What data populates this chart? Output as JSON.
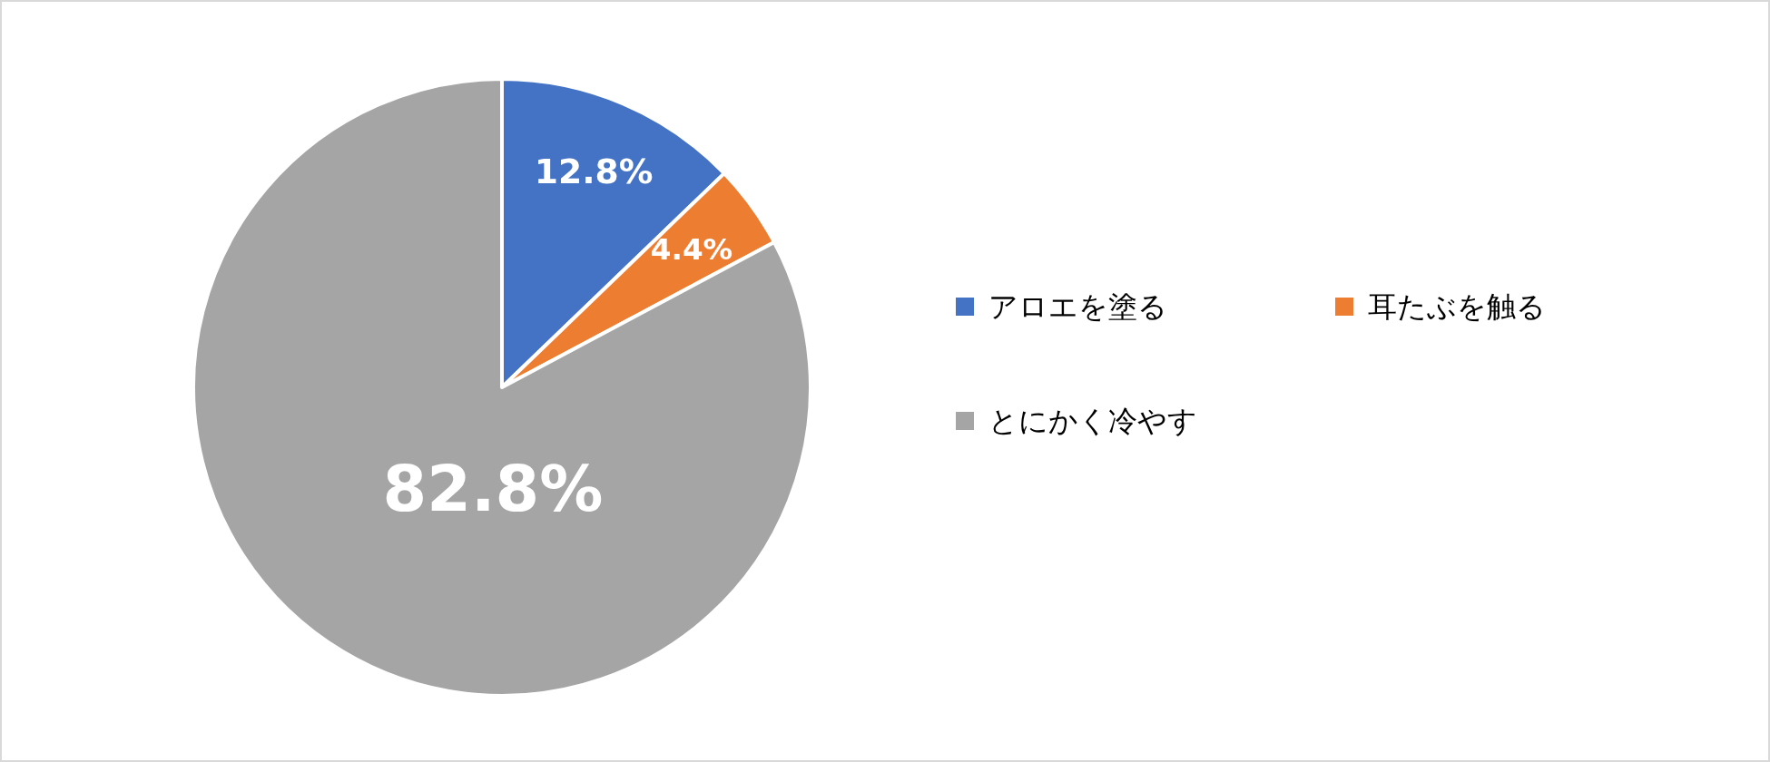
{
  "chart_data": {
    "type": "pie",
    "categories": [
      "アロエを塗る",
      "耳たぶを触る",
      "とにかく冷やす"
    ],
    "values": [
      12.8,
      4.4,
      82.8
    ],
    "colors": [
      "#4472c4",
      "#ed7d31",
      "#a5a5a5"
    ],
    "value_labels": [
      "12.8%",
      "4.4%",
      "82.8%"
    ],
    "legend": "right"
  }
}
